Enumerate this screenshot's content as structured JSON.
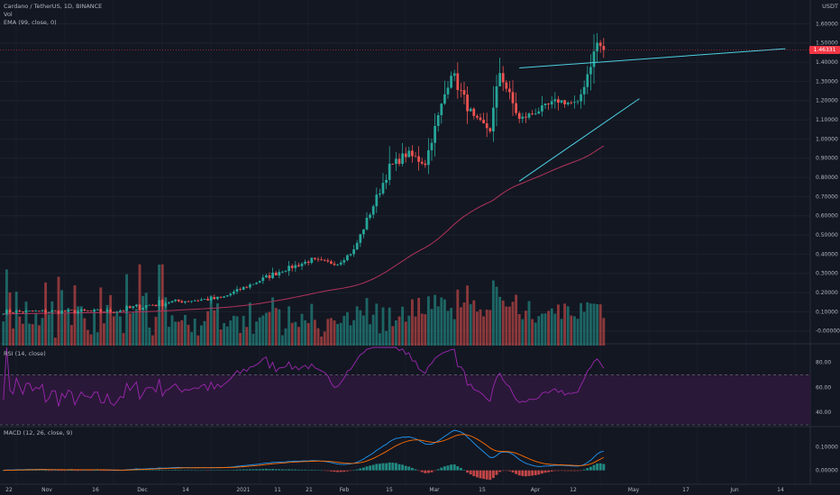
{
  "header": {
    "symbol_line": "Cardano / TetherUS, 1D, BINANCE",
    "volume_label": "Vol",
    "ema_label": "EMA (99, close, 0)",
    "rsi_label": "RSI (14, close)",
    "macd_label": "MACD (12, 26, close, 9)"
  },
  "price_axis": {
    "currency": "USDT",
    "ticks": [
      "1.60000",
      "1.50000",
      "1.40000",
      "1.30000",
      "1.20000",
      "1.10000",
      "1.00000",
      "0.90000",
      "0.80000",
      "0.70000",
      "0.60000",
      "0.50000",
      "0.40000",
      "0.30000",
      "0.20000",
      "0.10000",
      "-0.00000"
    ],
    "last_price": "1.46331"
  },
  "rsi_axis": {
    "ticks": [
      "80.00",
      "60.00",
      "40.00"
    ]
  },
  "macd_axis": {
    "ticks": [
      "0.10000",
      "0.00000"
    ]
  },
  "time_axis": {
    "labels": [
      "22",
      "Nov",
      "16",
      "Dec",
      "14",
      "2021",
      "11",
      "21",
      "Feb",
      "15",
      "Mar",
      "15",
      "Apr",
      "12",
      "May",
      "17",
      "Jun",
      "14"
    ]
  },
  "colors": {
    "background": "#131722",
    "up": "#26a69a",
    "down": "#ef5350",
    "ema": "#b2335a",
    "trendline": "#4dd0e1",
    "rsi_line": "#9c27b0",
    "rsi_band": "#2a1838",
    "macd_line": "#2196f3",
    "signal_line": "#ff6d00",
    "last_price_line": "#f23645"
  },
  "chart_data": {
    "type": "candlestick",
    "title": "Cardano / TetherUS, 1D, BINANCE",
    "price_range": [
      -0.02,
      1.63
    ],
    "price_segments": [
      {
        "days": 35,
        "from": 0.1,
        "to": 0.103,
        "vol": 0.22
      },
      {
        "days": 16,
        "from": 0.103,
        "to": 0.15,
        "vol": 0.28
      },
      {
        "days": 17,
        "from": 0.15,
        "to": 0.17,
        "vol": 0.15
      },
      {
        "days": 18,
        "from": 0.17,
        "to": 0.31,
        "vol": 0.1
      },
      {
        "days": 10,
        "from": 0.31,
        "to": 0.37,
        "vol": 0.07
      },
      {
        "days": 8,
        "from": 0.37,
        "to": 0.35,
        "vol": 0.05
      },
      {
        "days": 5,
        "from": 0.35,
        "to": 0.42,
        "vol": 0.05
      },
      {
        "days": 11,
        "from": 0.42,
        "to": 0.85,
        "vol": 0.06
      },
      {
        "days": 5,
        "from": 0.85,
        "to": 0.92,
        "vol": 0.05
      },
      {
        "days": 6,
        "from": 0.92,
        "to": 0.88,
        "vol": 0.06
      },
      {
        "days": 8,
        "from": 0.88,
        "to": 1.35,
        "vol": 0.04
      },
      {
        "days": 7,
        "from": 1.35,
        "to": 1.1,
        "vol": 0.05
      },
      {
        "days": 5,
        "from": 1.1,
        "to": 1.05,
        "vol": 0.04
      },
      {
        "days": 3,
        "from": 1.05,
        "to": 1.35,
        "vol": 0.05
      },
      {
        "days": 6,
        "from": 1.35,
        "to": 1.1,
        "vol": 0.04
      },
      {
        "days": 12,
        "from": 1.1,
        "to": 1.2,
        "vol": 0.03
      },
      {
        "days": 6,
        "from": 1.2,
        "to": 1.18,
        "vol": 0.03
      },
      {
        "days": 6,
        "from": 1.18,
        "to": 1.5,
        "vol": 0.04
      },
      {
        "days": 2,
        "from": 1.5,
        "to": 1.463,
        "vol": 0.03
      }
    ],
    "last_close": 1.46331,
    "ema_period": 99,
    "volume_range": [
      0,
      3.2
    ],
    "rsi_range": [
      30,
      92
    ],
    "rsi_levels": [
      70,
      30
    ],
    "macd_range": [
      -0.04,
      0.18
    ],
    "trendlines": [
      {
        "from": {
          "day": 159,
          "price": 1.37
        },
        "to": {
          "day": 241,
          "price": 1.47
        }
      },
      {
        "from": {
          "day": 159,
          "price": 0.78
        },
        "to": {
          "day": 196,
          "price": 1.21
        }
      }
    ]
  }
}
